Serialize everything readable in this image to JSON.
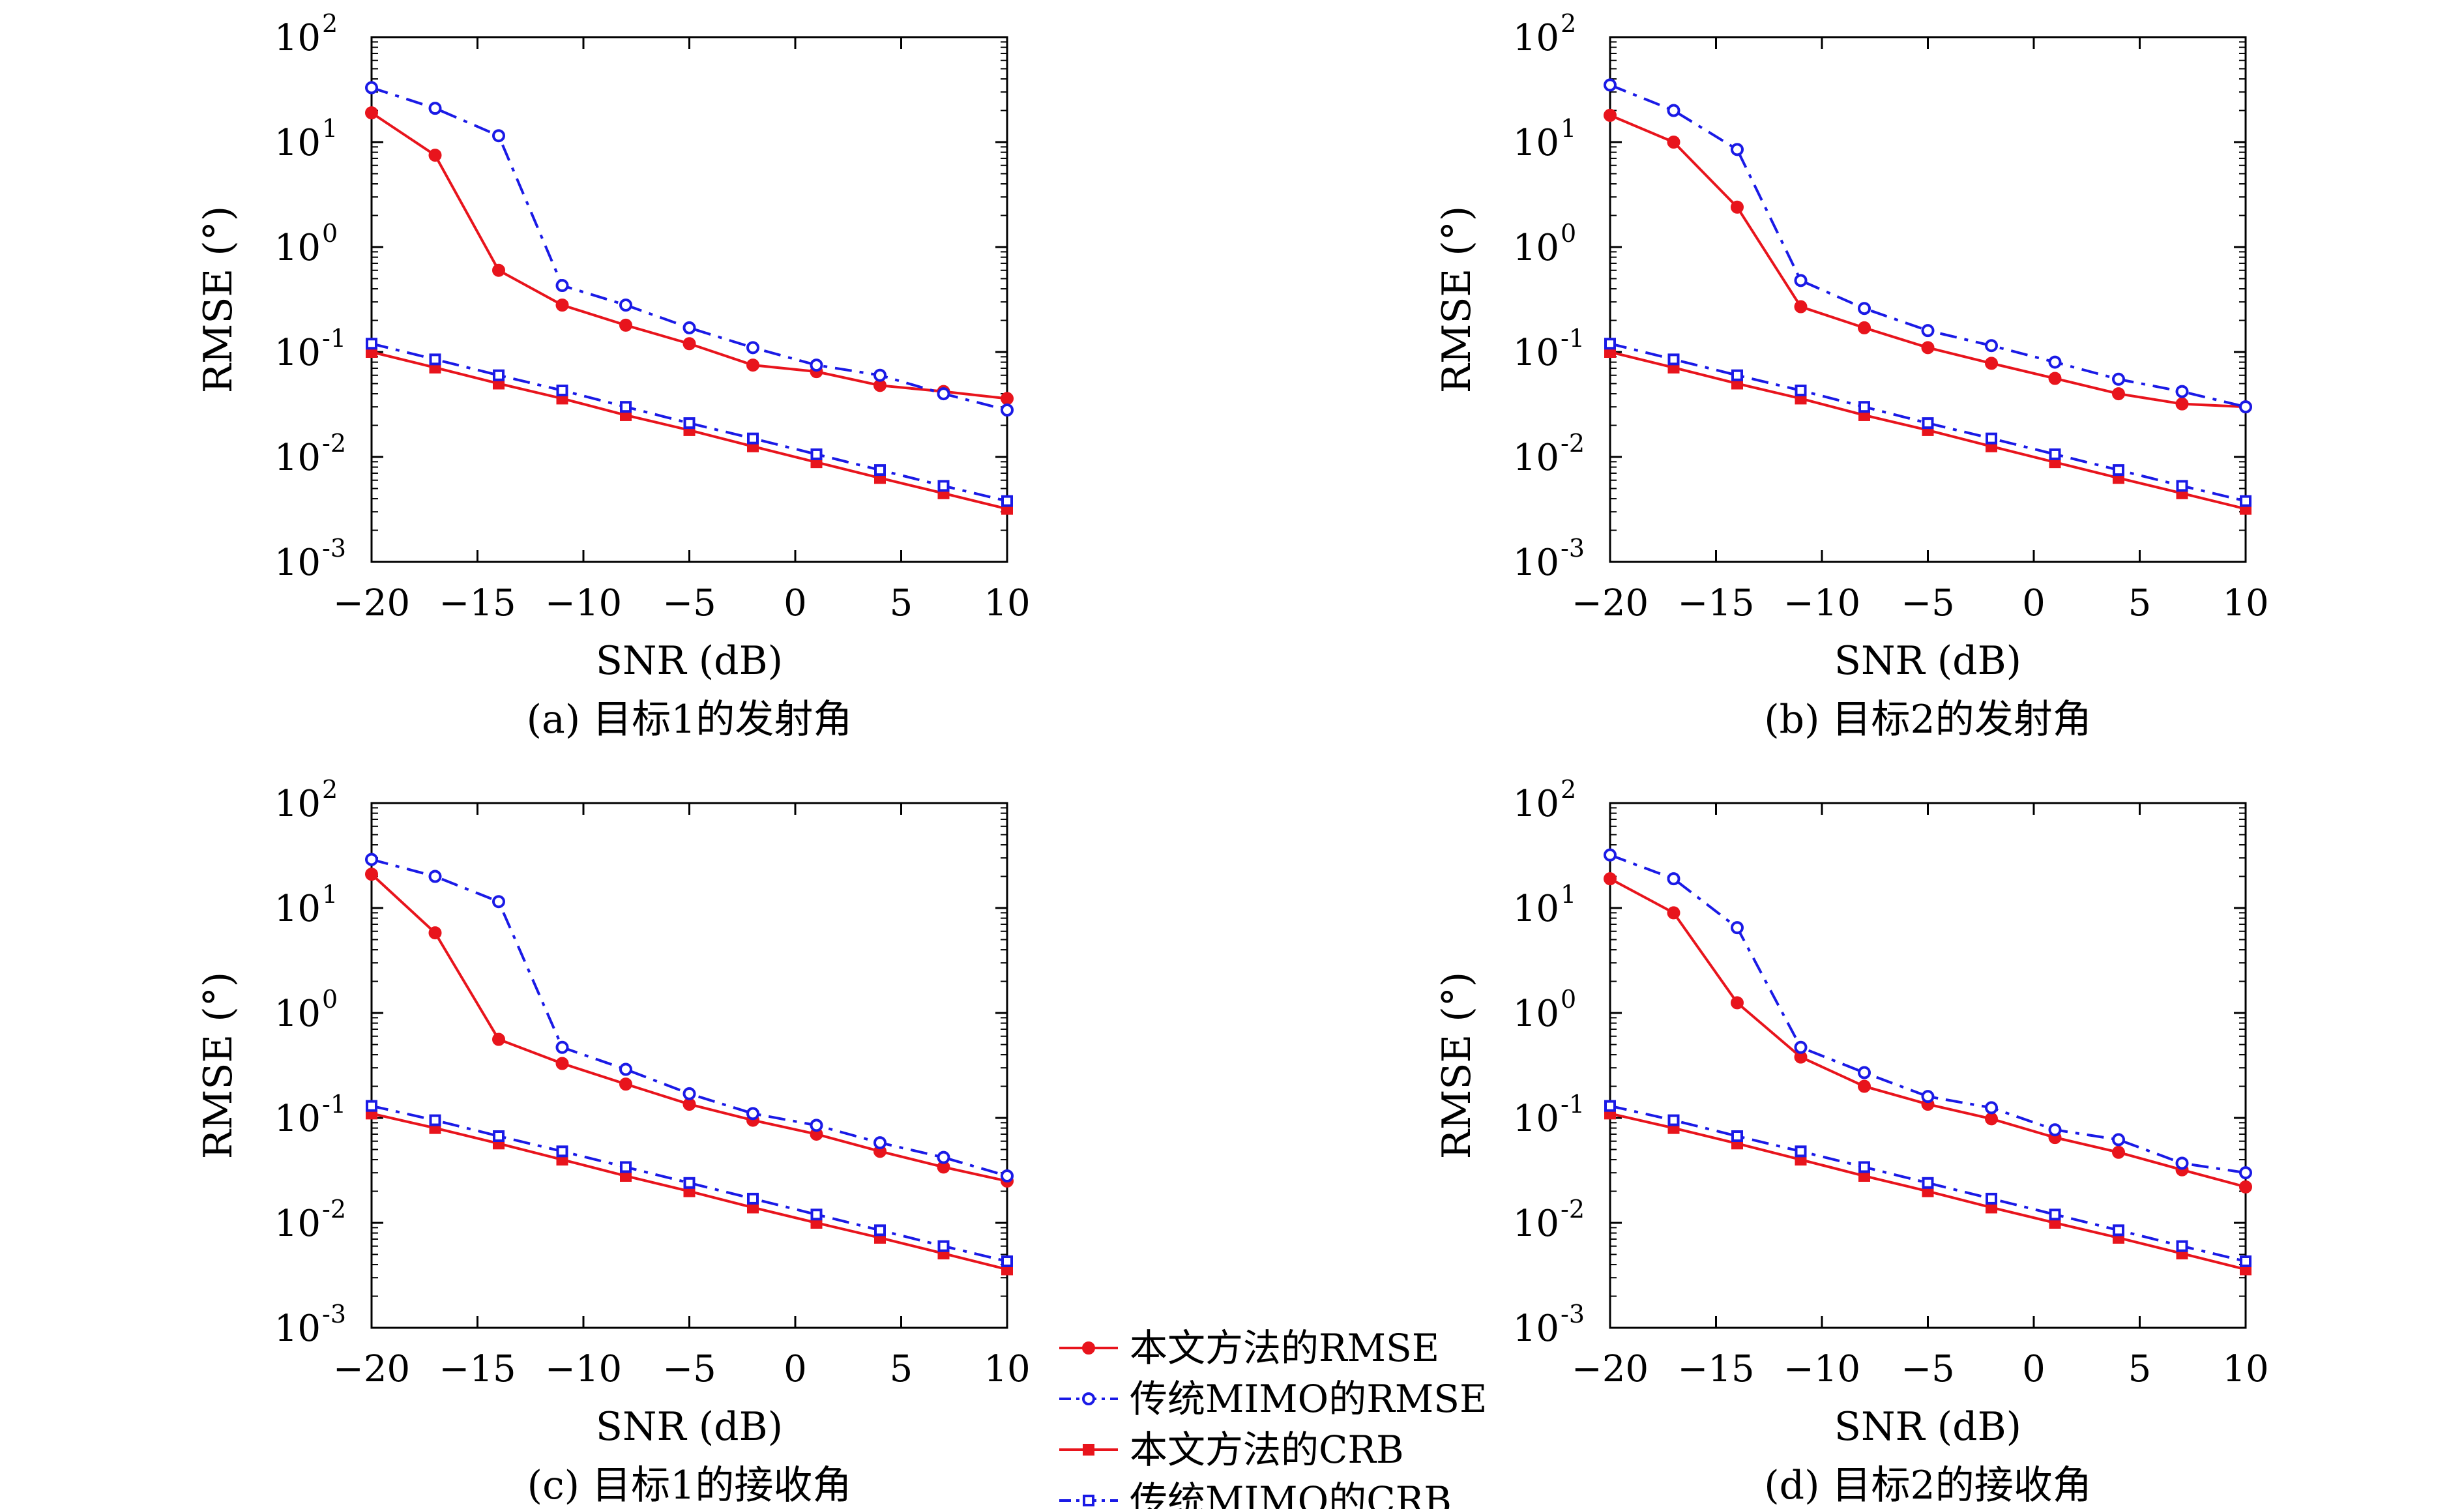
{
  "legend": [
    {
      "label": "本文方法的RMSE",
      "color": "#e8141c",
      "dash": "solid",
      "marker": "circle-filled"
    },
    {
      "label": "传统MIMO的RMSE",
      "color": "#1a1ae6",
      "dash": "dashdot",
      "marker": "circle-open"
    },
    {
      "label": "本文方法的CRB",
      "color": "#e8141c",
      "dash": "solid",
      "marker": "square-filled"
    },
    {
      "label": "传统MIMO的CRB",
      "color": "#1a1ae6",
      "dash": "dashdot",
      "marker": "square-open"
    }
  ],
  "chart_data": [
    {
      "type": "line",
      "caption": "(a) 目标1的发射角",
      "xlabel": "SNR (dB)",
      "ylabel": "RMSE (°)",
      "yscale": "log",
      "xlim": [
        -20,
        10
      ],
      "ylim": [
        0.001,
        100
      ],
      "x": [
        -20,
        -17,
        -14,
        -11,
        -8,
        -5,
        -2,
        1,
        4,
        7,
        10
      ],
      "xticks": [
        "−20",
        "−15",
        "−10",
        "−5",
        "0",
        "5",
        "10"
      ],
      "yticks": [
        "-3",
        "-2",
        "-1",
        "0",
        "1",
        "2"
      ],
      "series": [
        {
          "name": "本文方法的RMSE",
          "values": [
            19,
            7.5,
            0.6,
            0.28,
            0.18,
            0.12,
            0.075,
            0.065,
            0.048,
            0.042,
            0.036
          ]
        },
        {
          "name": "传统MIMO的RMSE",
          "values": [
            33,
            21,
            11.5,
            0.43,
            0.28,
            0.17,
            0.11,
            0.075,
            0.06,
            0.04,
            0.028
          ]
        },
        {
          "name": "本文方法的CRB",
          "values": [
            0.1,
            0.071,
            0.05,
            0.036,
            0.025,
            0.018,
            0.0126,
            0.0089,
            0.0063,
            0.0045,
            0.0032
          ]
        },
        {
          "name": "传统MIMO的CRB",
          "values": [
            0.12,
            0.085,
            0.06,
            0.043,
            0.03,
            0.021,
            0.015,
            0.0106,
            0.0075,
            0.0053,
            0.0038
          ]
        }
      ]
    },
    {
      "type": "line",
      "caption": "(b) 目标2的发射角",
      "xlabel": "SNR (dB)",
      "ylabel": "RMSE (°)",
      "yscale": "log",
      "xlim": [
        -20,
        10
      ],
      "ylim": [
        0.001,
        100
      ],
      "x": [
        -20,
        -17,
        -14,
        -11,
        -8,
        -5,
        -2,
        1,
        4,
        7,
        10
      ],
      "xticks": [
        "−20",
        "−15",
        "−10",
        "−5",
        "0",
        "5",
        "10"
      ],
      "yticks": [
        "-3",
        "-2",
        "-1",
        "0",
        "1",
        "2"
      ],
      "series": [
        {
          "name": "本文方法的RMSE",
          "values": [
            18,
            10,
            2.4,
            0.27,
            0.17,
            0.11,
            0.078,
            0.056,
            0.04,
            0.032,
            0.03
          ]
        },
        {
          "name": "传统MIMO的RMSE",
          "values": [
            35,
            20,
            8.5,
            0.48,
            0.26,
            0.16,
            0.115,
            0.08,
            0.055,
            0.042,
            0.03
          ]
        },
        {
          "name": "本文方法的CRB",
          "values": [
            0.1,
            0.071,
            0.05,
            0.036,
            0.025,
            0.018,
            0.0126,
            0.0089,
            0.0063,
            0.0045,
            0.0032
          ]
        },
        {
          "name": "传统MIMO的CRB",
          "values": [
            0.12,
            0.085,
            0.06,
            0.043,
            0.03,
            0.021,
            0.015,
            0.0106,
            0.0075,
            0.0053,
            0.0038
          ]
        }
      ]
    },
    {
      "type": "line",
      "caption": "(c) 目标1的接收角",
      "xlabel": "SNR (dB)",
      "ylabel": "RMSE (°)",
      "yscale": "log",
      "xlim": [
        -20,
        10
      ],
      "ylim": [
        0.001,
        100
      ],
      "x": [
        -20,
        -17,
        -14,
        -11,
        -8,
        -5,
        -2,
        1,
        4,
        7,
        10
      ],
      "xticks": [
        "−20",
        "−15",
        "−10",
        "−5",
        "0",
        "5",
        "10"
      ],
      "yticks": [
        "-3",
        "-2",
        "-1",
        "0",
        "1",
        "2"
      ],
      "series": [
        {
          "name": "本文方法的RMSE",
          "values": [
            21,
            5.8,
            0.56,
            0.33,
            0.21,
            0.135,
            0.095,
            0.07,
            0.048,
            0.034,
            0.025
          ]
        },
        {
          "name": "传统MIMO的RMSE",
          "values": [
            29,
            20,
            11.5,
            0.47,
            0.29,
            0.17,
            0.11,
            0.085,
            0.058,
            0.042,
            0.028
          ]
        },
        {
          "name": "本文方法的CRB",
          "values": [
            0.11,
            0.08,
            0.057,
            0.04,
            0.028,
            0.02,
            0.014,
            0.01,
            0.0072,
            0.0051,
            0.0036
          ]
        },
        {
          "name": "传统MIMO的CRB",
          "values": [
            0.13,
            0.095,
            0.067,
            0.048,
            0.034,
            0.024,
            0.017,
            0.012,
            0.0085,
            0.006,
            0.0043
          ]
        }
      ]
    },
    {
      "type": "line",
      "caption": "(d) 目标2的接收角",
      "xlabel": "SNR (dB)",
      "ylabel": "RMSE (°)",
      "yscale": "log",
      "xlim": [
        -20,
        10
      ],
      "ylim": [
        0.001,
        100
      ],
      "x": [
        -20,
        -17,
        -14,
        -11,
        -8,
        -5,
        -2,
        1,
        4,
        7,
        10
      ],
      "xticks": [
        "−20",
        "−15",
        "−10",
        "−5",
        "0",
        "5",
        "10"
      ],
      "yticks": [
        "-3",
        "-2",
        "-1",
        "0",
        "1",
        "2"
      ],
      "series": [
        {
          "name": "本文方法的RMSE",
          "values": [
            19,
            9,
            1.25,
            0.38,
            0.2,
            0.135,
            0.098,
            0.065,
            0.047,
            0.032,
            0.022
          ]
        },
        {
          "name": "传统MIMO的RMSE",
          "values": [
            32,
            19,
            6.5,
            0.47,
            0.27,
            0.16,
            0.125,
            0.077,
            0.062,
            0.037,
            0.03
          ]
        },
        {
          "name": "本文方法的CRB",
          "values": [
            0.11,
            0.08,
            0.057,
            0.04,
            0.028,
            0.02,
            0.014,
            0.01,
            0.0072,
            0.0051,
            0.0036
          ]
        },
        {
          "name": "传统MIMO的CRB",
          "values": [
            0.13,
            0.095,
            0.067,
            0.048,
            0.034,
            0.024,
            0.017,
            0.012,
            0.0085,
            0.006,
            0.0043
          ]
        }
      ]
    }
  ]
}
